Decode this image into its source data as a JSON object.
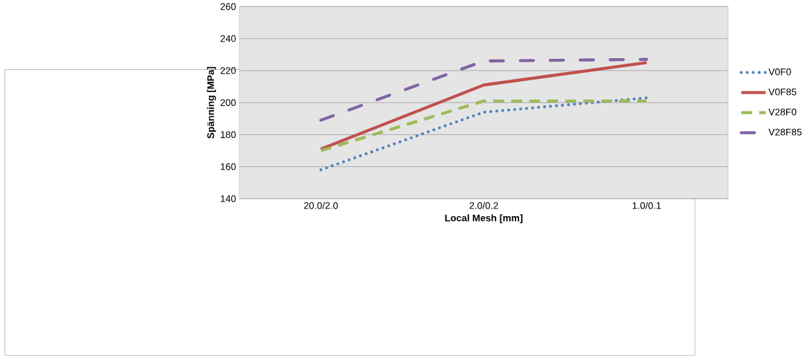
{
  "chart_data": {
    "type": "line",
    "xlabel": "Local Mesh [mm]",
    "ylabel": "Spänning [MPa]",
    "categories": [
      "20.0/2.0",
      "2.0/0.2",
      "1.0/0.1"
    ],
    "series": [
      {
        "name": "V0F0",
        "color": "#4f81bd",
        "values": [
          158,
          194,
          203
        ],
        "line_style": "dotted"
      },
      {
        "name": "V0F85",
        "color": "#c0504d",
        "values": [
          171,
          211,
          225
        ],
        "line_style": "solid"
      },
      {
        "name": "V28F0",
        "color": "#9bbb59",
        "values": [
          170,
          201,
          201
        ],
        "line_style": "dashed"
      },
      {
        "name": "V28F85",
        "color": "#8064a2",
        "values": [
          189,
          226,
          227
        ],
        "line_style": "dashdot"
      }
    ],
    "ylim": [
      140,
      260
    ],
    "yticks": [
      140,
      160,
      180,
      200,
      220,
      240,
      260
    ],
    "grid": "y",
    "legend": "right",
    "marker": "none"
  }
}
